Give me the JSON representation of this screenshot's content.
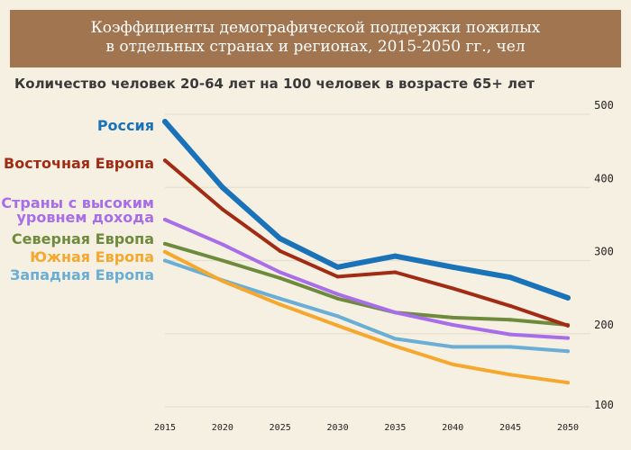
{
  "chart_data": {
    "type": "line",
    "title_lines": [
      "Коэффициенты демографической поддержки пожилых",
      "в отдельных странах и регионах, 2015-2050 гг., чел"
    ],
    "subtitle": "Количество человек 20-64 лет на 100 человек в возрасте 65+ лет",
    "x": [
      2015,
      2020,
      2025,
      2030,
      2035,
      2040,
      2045,
      2050
    ],
    "xticks": [
      "2015",
      "2020",
      "2025",
      "2030",
      "2035",
      "2040",
      "2045",
      "2050"
    ],
    "ylim": [
      100,
      500
    ],
    "yticks": [
      "100",
      "200",
      "300",
      "400",
      "500"
    ],
    "grid": true,
    "series": [
      {
        "name": "Россия",
        "label_lines": [
          "Россия"
        ],
        "color": "#1a73b8",
        "width": 6,
        "values": [
          490,
          400,
          330,
          291,
          306,
          291,
          277,
          249
        ]
      },
      {
        "name": "Восточная Европа",
        "label_lines": [
          "Восточная Европа"
        ],
        "color": "#a22b14",
        "width": 4,
        "values": [
          437,
          370,
          313,
          278,
          284,
          262,
          238,
          211
        ]
      },
      {
        "name": "Страны с высоким уровнем дохода",
        "label_lines": [
          "Страны с высоким",
          "уровнем дохода"
        ],
        "color": "#a86de8",
        "width": 4,
        "values": [
          356,
          322,
          284,
          254,
          229,
          212,
          199,
          194
        ]
      },
      {
        "name": "Северная Европа",
        "label_lines": [
          "Северная Европа"
        ],
        "color": "#6e8b3d",
        "width": 4,
        "values": [
          323,
          300,
          276,
          248,
          229,
          222,
          219,
          212
        ]
      },
      {
        "name": "Южная Европа",
        "label_lines": [
          "Южная Европа"
        ],
        "color": "#f5a82d",
        "width": 4,
        "values": [
          312,
          272,
          240,
          211,
          183,
          158,
          144,
          133
        ]
      },
      {
        "name": "Западная Европа",
        "label_lines": [
          "Западная Европа"
        ],
        "color": "#6aaed6",
        "width": 4,
        "values": [
          300,
          273,
          248,
          224,
          193,
          182,
          182,
          176
        ]
      }
    ]
  }
}
